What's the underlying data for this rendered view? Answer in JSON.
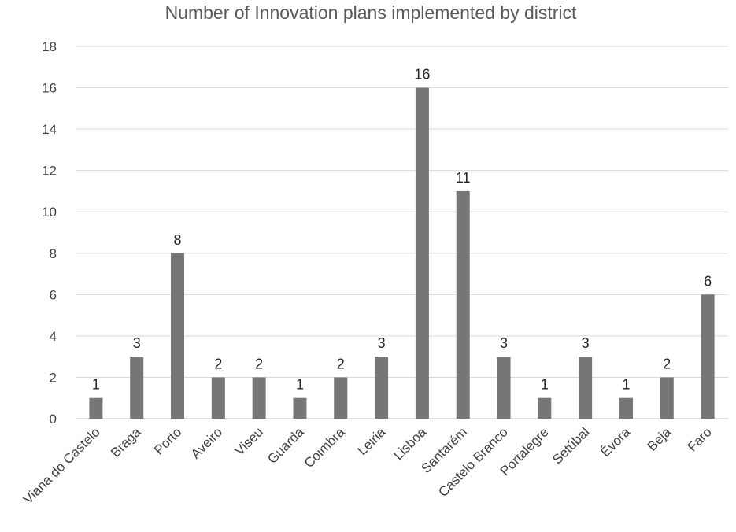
{
  "chart_data": {
    "type": "bar",
    "title": "Number of Innovation plans implemented by district",
    "categories": [
      "Viana do Castelo",
      "Braga",
      "Porto",
      "Aveiro",
      "Viseu",
      "Guarda",
      "Coimbra",
      "Leiria",
      "Lisboa",
      "Santarém",
      "Castelo Branco",
      "Portalegre",
      "Setúbal",
      "Évora",
      "Beja",
      "Faro"
    ],
    "values": [
      1,
      3,
      8,
      2,
      2,
      1,
      2,
      3,
      16,
      11,
      3,
      1,
      3,
      1,
      2,
      6
    ],
    "xlabel": "",
    "ylabel": "",
    "ylim": [
      0,
      18
    ],
    "yticks": [
      0,
      2,
      4,
      6,
      8,
      10,
      12,
      14,
      16,
      18
    ],
    "grid": true,
    "bar_color": "#767676",
    "data_labels": true
  }
}
